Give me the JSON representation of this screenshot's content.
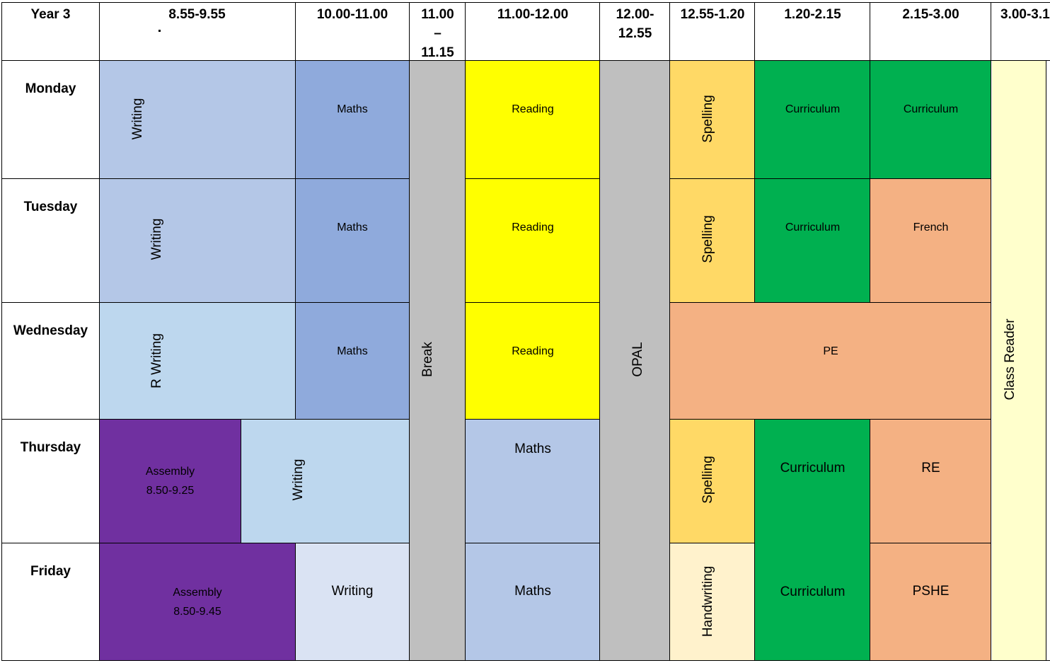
{
  "header": {
    "corner": "Year 3",
    "periods": [
      "8.55-9.55",
      "10.00-11.00",
      "11.00",
      "–",
      "11.15",
      "11.00-12.00",
      "12.00-",
      "12.55",
      "12.55-1.20",
      "1.20-2.15",
      "2.15-3.00",
      "3.00-3.1"
    ]
  },
  "days": [
    "Monday",
    "Tuesday",
    "Wednesday",
    "Thursday",
    "Friday"
  ],
  "lessons": {
    "writing": "Writing",
    "r_writing": "R Writing",
    "maths": "Maths",
    "reading": "Reading",
    "spelling": "Spelling",
    "handwriting": "Handwriting",
    "curriculum": "Curriculum",
    "french": "French",
    "pe": "PE",
    "re": "RE",
    "pshe": "PSHE",
    "assembly": "Assembly",
    "assembly_thu_time": "8.50-9.25",
    "assembly_fri_time": "8.50-9.45",
    "break": "Break",
    "opal": "OPAL",
    "class_reader": "Class Reader"
  },
  "colors": {
    "writing": "#b4c7e7",
    "writing_light": "#bdd7ee",
    "writing_pale": "#dae3f3",
    "maths": "#8faadc",
    "reading": "#ffff00",
    "break": "#bfbfbf",
    "spelling": "#ffd966",
    "handwriting": "#fff2cc",
    "curriculum": "#00b050",
    "orange": "#f4b183",
    "assembly": "#7030a0",
    "class_reader": "#ffffcc"
  }
}
